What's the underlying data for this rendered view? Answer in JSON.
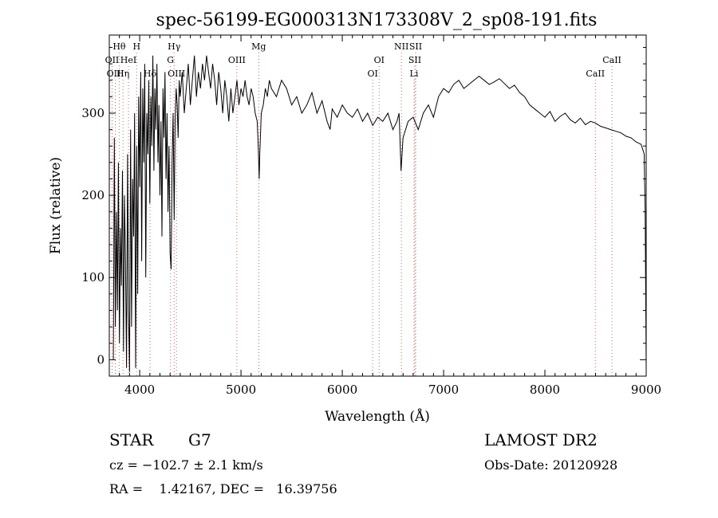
{
  "chart_data": {
    "type": "line",
    "title": "spec-56199-EG000313N173308V_2_sp08-191.fits",
    "xlabel": "Wavelength (Å)",
    "ylabel": "Flux (relative)",
    "xlim": [
      3700,
      9000
    ],
    "ylim": [
      -20,
      395
    ],
    "xticks": [
      4000,
      5000,
      6000,
      7000,
      8000,
      9000
    ],
    "yticks": [
      0,
      100,
      200,
      300
    ],
    "grid": false,
    "spectrum": {
      "x": [
        3740,
        3750,
        3760,
        3770,
        3780,
        3790,
        3800,
        3810,
        3820,
        3830,
        3840,
        3850,
        3860,
        3870,
        3880,
        3890,
        3900,
        3910,
        3920,
        3930,
        3940,
        3950,
        3960,
        3970,
        3980,
        3990,
        4000,
        4010,
        4020,
        4030,
        4040,
        4050,
        4060,
        4070,
        4080,
        4090,
        4100,
        4110,
        4120,
        4130,
        4140,
        4150,
        4160,
        4170,
        4180,
        4190,
        4200,
        4210,
        4220,
        4230,
        4240,
        4250,
        4260,
        4270,
        4280,
        4290,
        4300,
        4310,
        4320,
        4330,
        4340,
        4350,
        4360,
        4370,
        4380,
        4390,
        4400,
        4420,
        4440,
        4460,
        4480,
        4500,
        4520,
        4540,
        4560,
        4580,
        4600,
        4620,
        4640,
        4660,
        4680,
        4700,
        4720,
        4740,
        4760,
        4780,
        4800,
        4820,
        4840,
        4860,
        4880,
        4900,
        4920,
        4940,
        4960,
        4980,
        5000,
        5020,
        5040,
        5060,
        5080,
        5100,
        5120,
        5140,
        5160,
        5170,
        5180,
        5185,
        5200,
        5220,
        5240,
        5260,
        5280,
        5300,
        5350,
        5400,
        5450,
        5500,
        5550,
        5600,
        5650,
        5700,
        5750,
        5800,
        5850,
        5880,
        5900,
        5950,
        6000,
        6050,
        6100,
        6150,
        6200,
        6250,
        6300,
        6350,
        6400,
        6450,
        6500,
        6540,
        6560,
        6565,
        6580,
        6600,
        6650,
        6700,
        6750,
        6800,
        6850,
        6900,
        6950,
        7000,
        7050,
        7100,
        7150,
        7200,
        7250,
        7300,
        7350,
        7400,
        7450,
        7500,
        7550,
        7600,
        7650,
        7700,
        7750,
        7800,
        7850,
        7900,
        7950,
        8000,
        8050,
        8100,
        8150,
        8200,
        8250,
        8300,
        8350,
        8400,
        8450,
        8500,
        8550,
        8600,
        8650,
        8700,
        8750,
        8800,
        8850,
        8900,
        8950,
        8980,
        8990,
        8995,
        9000
      ],
      "y": [
        0,
        270,
        40,
        180,
        60,
        240,
        20,
        160,
        90,
        230,
        10,
        200,
        120,
        -10,
        250,
        60,
        -15,
        280,
        40,
        220,
        150,
        300,
        -10,
        260,
        80,
        320,
        210,
        350,
        120,
        330,
        240,
        360,
        100,
        300,
        250,
        340,
        190,
        320,
        260,
        370,
        230,
        330,
        280,
        360,
        240,
        310,
        200,
        290,
        150,
        330,
        270,
        350,
        220,
        300,
        180,
        260,
        130,
        110,
        240,
        300,
        170,
        290,
        330,
        310,
        270,
        340,
        320,
        350,
        300,
        330,
        360,
        310,
        340,
        370,
        320,
        350,
        330,
        360,
        340,
        370,
        350,
        330,
        360,
        340,
        310,
        350,
        330,
        300,
        340,
        320,
        290,
        330,
        300,
        320,
        340,
        310,
        330,
        320,
        340,
        320,
        310,
        330,
        320,
        300,
        290,
        260,
        220,
        250,
        300,
        310,
        330,
        320,
        340,
        330,
        320,
        340,
        330,
        310,
        320,
        300,
        310,
        325,
        300,
        315,
        290,
        280,
        305,
        295,
        310,
        300,
        295,
        305,
        290,
        300,
        285,
        295,
        290,
        300,
        280,
        290,
        300,
        285,
        230,
        270,
        290,
        295,
        280,
        300,
        310,
        295,
        320,
        330,
        325,
        335,
        340,
        330,
        335,
        340,
        345,
        340,
        335,
        338,
        342,
        336,
        330,
        334,
        325,
        320,
        310,
        305,
        300,
        295,
        302,
        290,
        296,
        300,
        292,
        288,
        294,
        286,
        290,
        288,
        284,
        282,
        280,
        278,
        276,
        272,
        270,
        265,
        262,
        250,
        180,
        80,
        -10
      ]
    },
    "line_markers": [
      {
        "label": "Hθ",
        "x": 3798,
        "row": 1,
        "color": "#cc6666"
      },
      {
        "label": "H",
        "x": 3970,
        "row": 1,
        "color": "#cc6666"
      },
      {
        "label": "Hγ",
        "x": 4340,
        "row": 1,
        "color": "#cc6666"
      },
      {
        "label": "Mg",
        "x": 5175,
        "row": 1,
        "color": "#cc6666"
      },
      {
        "label": "NII",
        "x": 6584,
        "row": 1,
        "color": "#cc6666"
      },
      {
        "label": "SII",
        "x": 6724,
        "row": 1,
        "color": "#cc6666"
      },
      {
        "label": "OII",
        "x": 3727,
        "row": 2,
        "color": "#cc6666"
      },
      {
        "label": "HeI",
        "x": 3889,
        "row": 2,
        "color": "#cc6666"
      },
      {
        "label": "G",
        "x": 4304,
        "row": 2,
        "color": "#cc6666"
      },
      {
        "label": "OIII",
        "x": 4959,
        "row": 2,
        "color": "#cc6666"
      },
      {
        "label": "OI",
        "x": 6364,
        "row": 2,
        "color": "#cc6666"
      },
      {
        "label": "SII",
        "x": 6716,
        "row": 2,
        "color": "#cc6666"
      },
      {
        "label": "CaII",
        "x": 8662,
        "row": 2,
        "color": "#cc6666"
      },
      {
        "label": "OIII",
        "x": 3760,
        "row": 3,
        "color": "#cc6666"
      },
      {
        "label": "Hη",
        "x": 3835,
        "row": 3,
        "color": "#cc6666"
      },
      {
        "label": "Hδ",
        "x": 4102,
        "row": 3,
        "color": "#cc6666"
      },
      {
        "label": "OIII",
        "x": 4363,
        "row": 3,
        "color": "#cc6666"
      },
      {
        "label": "OI",
        "x": 6300,
        "row": 3,
        "color": "#cc6666"
      },
      {
        "label": "Li",
        "x": 6708,
        "row": 3,
        "color": "#cc6666"
      },
      {
        "label": "CaII",
        "x": 8498,
        "row": 3,
        "color": "#cc6666"
      }
    ]
  },
  "info": {
    "class_label": "STAR",
    "subclass": "G7",
    "cz_text": "cz = −102.7 ± 2.1 km/s",
    "coords_text": "RA =    1.42167, DEC =   16.39756",
    "survey": "LAMOST DR2",
    "obs_date": "Obs-Date: 20120928"
  }
}
